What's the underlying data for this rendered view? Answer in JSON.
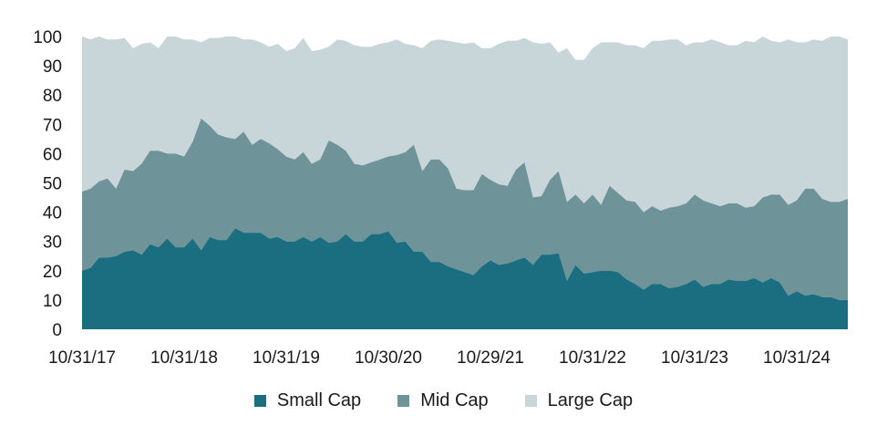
{
  "chart_data": {
    "type": "area",
    "stacked": true,
    "ylim": [
      0,
      100
    ],
    "yticks": [
      0,
      10,
      20,
      30,
      40,
      50,
      60,
      70,
      80,
      90,
      100
    ],
    "xticks": [
      "10/31/17",
      "10/31/18",
      "10/31/19",
      "10/30/20",
      "10/29/21",
      "10/31/22",
      "10/31/23",
      "10/31/24"
    ],
    "x_start": "10/31/17",
    "x_end": "6/30/25",
    "grid": false,
    "legend_position": "bottom",
    "series": [
      {
        "name": "Small Cap",
        "color": "#1b6e80",
        "values": [
          20,
          21,
          24.5,
          24.5,
          25,
          26.5,
          27,
          25.5,
          29,
          28,
          31,
          28,
          28,
          31,
          27,
          31.5,
          30.5,
          30.5,
          34.5,
          33,
          33,
          33,
          31,
          31.5,
          30,
          30,
          31.5,
          30,
          31.5,
          29.5,
          30,
          32.5,
          30,
          30,
          32.5,
          32.5,
          33.5,
          29.5,
          30,
          26.5,
          26.5,
          23,
          23,
          21.5,
          20.5,
          19.5,
          18.5,
          21.5,
          23.5,
          22,
          22.5,
          23.5,
          24.5,
          22,
          25.5,
          25.5,
          26,
          16.5,
          22,
          19,
          19.5,
          20,
          20,
          19.5,
          17,
          15.5,
          13.5,
          15.5,
          15.5,
          14,
          14.5,
          15.5,
          17,
          14.5,
          15.5,
          15.5,
          17,
          16.5,
          16.5,
          17.5,
          16,
          17.5,
          16,
          11.5,
          13,
          11.5,
          12,
          11,
          11,
          10,
          10
        ]
      },
      {
        "name": "Mid Cap",
        "color": "#6e9399",
        "values": [
          27,
          27,
          26,
          27,
          23,
          28,
          27,
          31,
          32,
          33,
          29,
          32,
          31,
          33,
          45,
          38,
          36,
          35,
          30.5,
          34.5,
          30,
          32,
          32.5,
          30,
          29,
          28,
          29,
          26.5,
          26.5,
          35,
          33,
          28.5,
          26.5,
          26,
          24.5,
          25.5,
          25.5,
          30,
          30.5,
          36.5,
          27.5,
          35,
          35,
          33.5,
          27.5,
          28,
          29,
          31.5,
          27.5,
          27.5,
          26.5,
          31,
          32.5,
          23,
          20,
          25.5,
          28,
          27,
          24,
          24,
          26.5,
          22.5,
          29,
          27,
          27,
          28,
          26.5,
          26.5,
          25,
          27.5,
          27.5,
          27.5,
          29,
          29.5,
          27.5,
          26.5,
          26,
          26.5,
          25,
          24.5,
          29,
          28.5,
          30,
          31,
          31,
          36.5,
          36,
          33.5,
          32.5,
          33.5,
          34.5
        ]
      },
      {
        "name": "Large Cap",
        "color": "#c8d6da",
        "values": [
          53,
          51,
          49.5,
          47.5,
          51,
          45,
          42,
          41,
          37,
          35,
          40,
          40,
          40,
          35,
          26,
          30,
          33,
          35,
          35,
          31.5,
          36,
          33,
          33,
          36,
          36,
          38,
          39,
          38.5,
          37.5,
          32,
          36,
          37.5,
          40.5,
          40.5,
          39.5,
          39.5,
          39,
          39.5,
          37,
          34,
          42,
          40.5,
          41,
          43.5,
          50,
          50,
          50.5,
          43,
          45,
          48,
          49.5,
          44,
          42.5,
          53,
          52,
          47,
          40.5,
          52.5,
          46,
          49,
          50,
          55.5,
          49,
          51.5,
          53,
          53.5,
          56,
          56.5,
          58,
          57.5,
          57,
          54,
          52,
          54,
          56,
          56,
          54,
          54,
          57,
          56,
          55,
          52.5,
          52,
          56.5,
          54,
          50,
          51,
          54,
          56.5,
          56.5,
          54.5
        ]
      }
    ]
  }
}
